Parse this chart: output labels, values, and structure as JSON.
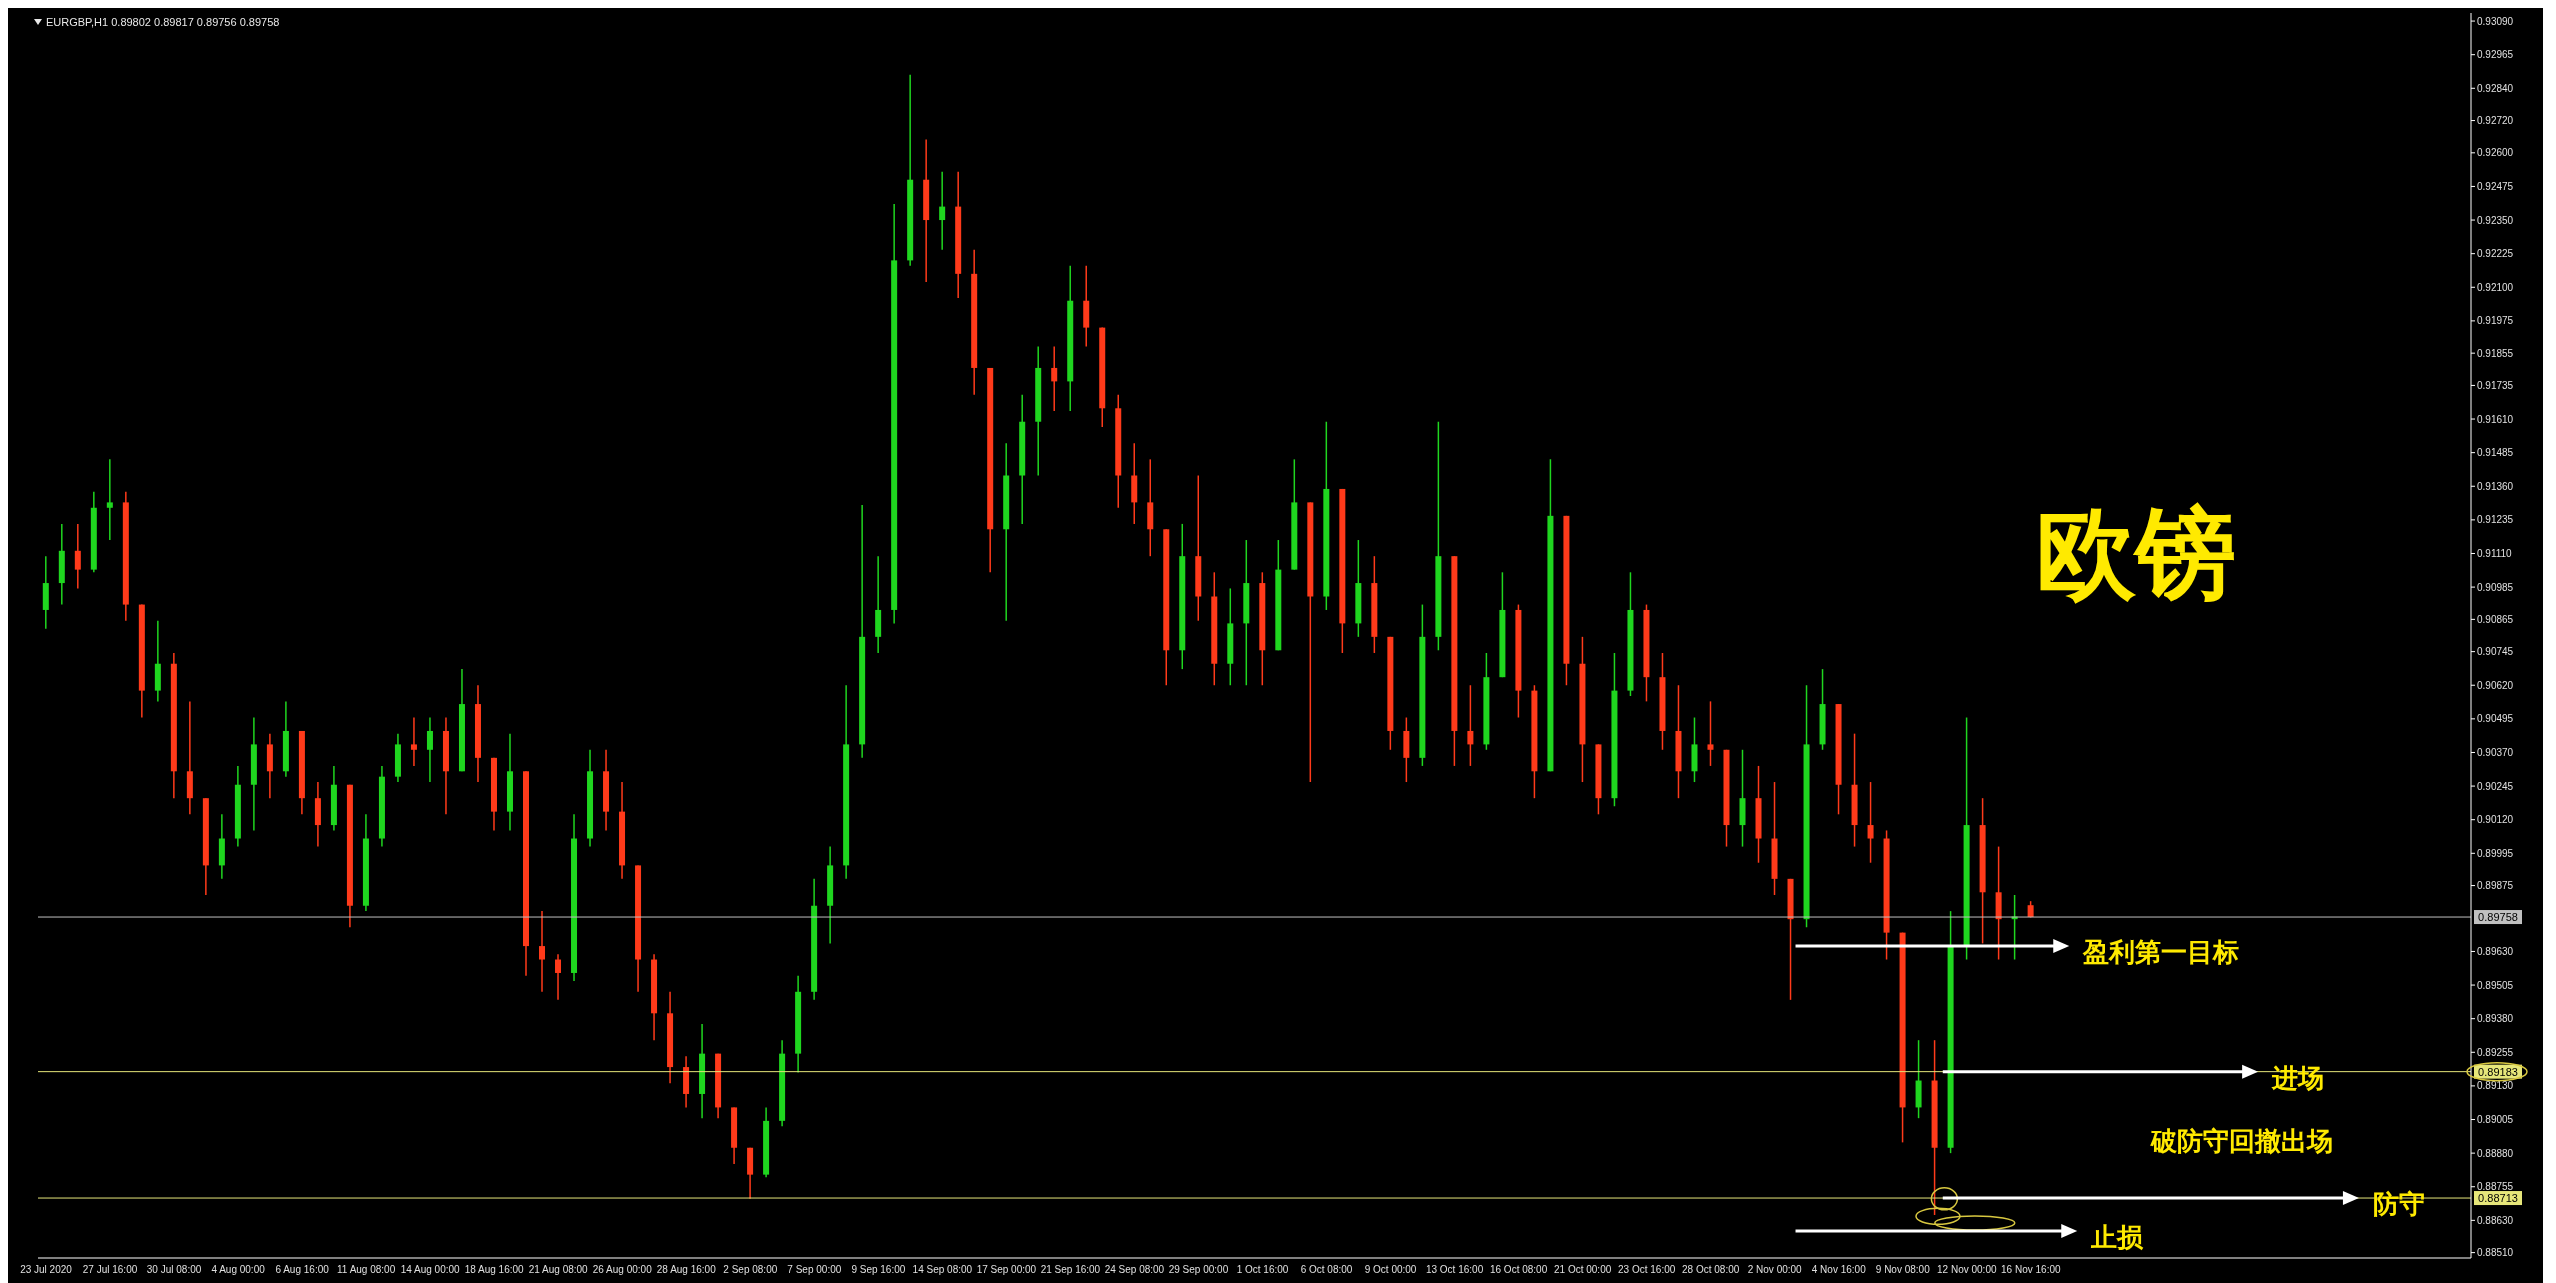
{
  "chart_data": {
    "type": "candlestick",
    "title": "EURGBP,H1  0.89802 0.89817 0.89756 0.89758",
    "categories": [
      "23 Jul 2020",
      null,
      null,
      null,
      "27 Jul 16:00",
      null,
      null,
      null,
      "30 Jul 08:00",
      null,
      null,
      null,
      "4 Aug 00:00",
      null,
      null,
      null,
      "6 Aug 16:00",
      null,
      null,
      null,
      "11 Aug 08:00",
      null,
      null,
      null,
      "14 Aug 00:00",
      null,
      null,
      null,
      "18 Aug 16:00",
      null,
      null,
      null,
      "21 Aug 08:00",
      null,
      null,
      null,
      "26 Aug 00:00",
      null,
      null,
      null,
      "28 Aug 16:00",
      null,
      null,
      null,
      "2 Sep 08:00",
      null,
      null,
      null,
      "7 Sep 00:00",
      null,
      null,
      null,
      "9 Sep 16:00",
      null,
      null,
      null,
      "14 Sep 08:00",
      null,
      null,
      null,
      "17 Sep 00:00",
      null,
      null,
      null,
      "21 Sep 16:00",
      null,
      null,
      null,
      "24 Sep 08:00",
      null,
      null,
      null,
      "29 Sep 00:00",
      null,
      null,
      null,
      "1 Oct 16:00",
      null,
      null,
      null,
      "6 Oct 08:00",
      null,
      null,
      null,
      "9 Oct 00:00",
      null,
      null,
      null,
      "13 Oct 16:00",
      null,
      null,
      null,
      "16 Oct 08:00",
      null,
      null,
      null,
      "21 Oct 00:00",
      null,
      null,
      null,
      "23 Oct 16:00",
      null,
      null,
      null,
      "28 Oct 08:00",
      null,
      null,
      null,
      "2 Nov 00:00",
      null,
      null,
      null,
      "4 Nov 16:00",
      null,
      null,
      null,
      "9 Nov 08:00",
      null,
      null,
      null,
      "12 Nov 00:00",
      null,
      null,
      null,
      "16 Nov 16:00",
      null,
      null,
      null,
      null,
      null,
      null,
      null,
      null,
      null,
      null,
      null,
      null,
      null,
      null,
      null,
      null,
      null,
      null,
      null,
      null,
      null,
      null,
      null,
      null,
      null,
      null,
      null
    ],
    "ohlc": [
      [
        0.909,
        0.911,
        0.9083,
        0.91
      ],
      [
        0.91,
        0.9122,
        0.9092,
        0.9112
      ],
      [
        0.9112,
        0.9122,
        0.9098,
        0.9105
      ],
      [
        0.9105,
        0.9134,
        0.9104,
        0.9128
      ],
      [
        0.9128,
        0.9146,
        0.9116,
        0.913
      ],
      [
        0.913,
        0.9134,
        0.9086,
        0.9092
      ],
      [
        0.9092,
        0.9092,
        0.905,
        0.906
      ],
      [
        0.906,
        0.9086,
        0.9056,
        0.907
      ],
      [
        0.907,
        0.9074,
        0.902,
        0.903
      ],
      [
        0.903,
        0.9056,
        0.9014,
        0.902
      ],
      [
        0.902,
        0.902,
        0.8984,
        0.8995
      ],
      [
        0.8995,
        0.9014,
        0.899,
        0.9005
      ],
      [
        0.9005,
        0.9032,
        0.9002,
        0.9025
      ],
      [
        0.9025,
        0.905,
        0.9008,
        0.904
      ],
      [
        0.904,
        0.9044,
        0.902,
        0.903
      ],
      [
        0.903,
        0.9056,
        0.9028,
        0.9045
      ],
      [
        0.9045,
        0.9045,
        0.9014,
        0.902
      ],
      [
        0.902,
        0.9026,
        0.9002,
        0.901
      ],
      [
        0.901,
        0.9032,
        0.9008,
        0.9025
      ],
      [
        0.9025,
        0.9025,
        0.8972,
        0.898
      ],
      [
        0.898,
        0.9014,
        0.8978,
        0.9005
      ],
      [
        0.9005,
        0.9032,
        0.9002,
        0.9028
      ],
      [
        0.9028,
        0.9044,
        0.9026,
        0.904
      ],
      [
        0.904,
        0.905,
        0.9032,
        0.9038
      ],
      [
        0.9038,
        0.905,
        0.9026,
        0.9045
      ],
      [
        0.9045,
        0.905,
        0.9014,
        0.903
      ],
      [
        0.903,
        0.9068,
        0.903,
        0.9055
      ],
      [
        0.9055,
        0.9062,
        0.9026,
        0.9035
      ],
      [
        0.9035,
        0.9035,
        0.9008,
        0.9015
      ],
      [
        0.9015,
        0.9044,
        0.9008,
        0.903
      ],
      [
        0.903,
        0.903,
        0.8954,
        0.8965
      ],
      [
        0.8965,
        0.8978,
        0.8948,
        0.896
      ],
      [
        0.896,
        0.8962,
        0.8945,
        0.8955
      ],
      [
        0.8955,
        0.9014,
        0.8952,
        0.9005
      ],
      [
        0.9005,
        0.9038,
        0.9002,
        0.903
      ],
      [
        0.903,
        0.9038,
        0.9008,
        0.9015
      ],
      [
        0.9015,
        0.9026,
        0.899,
        0.8995
      ],
      [
        0.8995,
        0.8995,
        0.8948,
        0.896
      ],
      [
        0.896,
        0.8962,
        0.893,
        0.894
      ],
      [
        0.894,
        0.8948,
        0.8914,
        0.892
      ],
      [
        0.892,
        0.8924,
        0.8905,
        0.891
      ],
      [
        0.891,
        0.8936,
        0.8901,
        0.8925
      ],
      [
        0.8925,
        0.8925,
        0.8901,
        0.8905
      ],
      [
        0.8905,
        0.8905,
        0.8884,
        0.889
      ],
      [
        0.889,
        0.889,
        0.8871,
        0.888
      ],
      [
        0.888,
        0.8905,
        0.8879,
        0.89
      ],
      [
        0.89,
        0.893,
        0.8898,
        0.8925
      ],
      [
        0.8925,
        0.8954,
        0.8918,
        0.8948
      ],
      [
        0.8948,
        0.899,
        0.8945,
        0.898
      ],
      [
        0.898,
        0.9002,
        0.8966,
        0.8995
      ],
      [
        0.8995,
        0.9062,
        0.899,
        0.904
      ],
      [
        0.904,
        0.9129,
        0.9035,
        0.908
      ],
      [
        0.908,
        0.911,
        0.9074,
        0.909
      ],
      [
        0.909,
        0.9241,
        0.9085,
        0.922
      ],
      [
        0.922,
        0.9289,
        0.9218,
        0.925
      ],
      [
        0.925,
        0.9265,
        0.9212,
        0.9235
      ],
      [
        0.9235,
        0.9253,
        0.9224,
        0.924
      ],
      [
        0.924,
        0.9253,
        0.9206,
        0.9215
      ],
      [
        0.9215,
        0.9224,
        0.917,
        0.918
      ],
      [
        0.918,
        0.918,
        0.9104,
        0.912
      ],
      [
        0.912,
        0.9152,
        0.9086,
        0.914
      ],
      [
        0.914,
        0.917,
        0.9122,
        0.916
      ],
      [
        0.916,
        0.9188,
        0.914,
        0.918
      ],
      [
        0.918,
        0.9188,
        0.9164,
        0.9175
      ],
      [
        0.9175,
        0.9218,
        0.9164,
        0.9205
      ],
      [
        0.9205,
        0.9218,
        0.9188,
        0.9195
      ],
      [
        0.9195,
        0.9195,
        0.9158,
        0.9165
      ],
      [
        0.9165,
        0.917,
        0.9128,
        0.914
      ],
      [
        0.914,
        0.9152,
        0.9122,
        0.913
      ],
      [
        0.913,
        0.9146,
        0.911,
        0.912
      ],
      [
        0.912,
        0.912,
        0.9062,
        0.9075
      ],
      [
        0.9075,
        0.9122,
        0.9068,
        0.911
      ],
      [
        0.911,
        0.914,
        0.9086,
        0.9095
      ],
      [
        0.9095,
        0.9104,
        0.9062,
        0.907
      ],
      [
        0.907,
        0.9098,
        0.9062,
        0.9085
      ],
      [
        0.9085,
        0.9116,
        0.9062,
        0.91
      ],
      [
        0.91,
        0.9104,
        0.9062,
        0.9075
      ],
      [
        0.9075,
        0.9116,
        0.9075,
        0.9105
      ],
      [
        0.9105,
        0.9146,
        0.9105,
        0.913
      ],
      [
        0.913,
        0.913,
        0.9026,
        0.9095
      ],
      [
        0.9095,
        0.916,
        0.909,
        0.9135
      ],
      [
        0.9135,
        0.9135,
        0.9074,
        0.9085
      ],
      [
        0.9085,
        0.9116,
        0.908,
        0.91
      ],
      [
        0.91,
        0.911,
        0.9074,
        0.908
      ],
      [
        0.908,
        0.908,
        0.9038,
        0.9045
      ],
      [
        0.9045,
        0.905,
        0.9026,
        0.9035
      ],
      [
        0.9035,
        0.9092,
        0.9032,
        0.908
      ],
      [
        0.908,
        0.916,
        0.9075,
        0.911
      ],
      [
        0.911,
        0.911,
        0.9032,
        0.9045
      ],
      [
        0.9045,
        0.9062,
        0.9032,
        0.904
      ],
      [
        0.904,
        0.9074,
        0.9038,
        0.9065
      ],
      [
        0.9065,
        0.9104,
        0.9065,
        0.909
      ],
      [
        0.909,
        0.9092,
        0.905,
        0.906
      ],
      [
        0.906,
        0.9062,
        0.902,
        0.903
      ],
      [
        0.903,
        0.9146,
        0.903,
        0.9125
      ],
      [
        0.9125,
        0.9125,
        0.9062,
        0.907
      ],
      [
        0.907,
        0.908,
        0.9026,
        0.904
      ],
      [
        0.904,
        0.904,
        0.9014,
        0.902
      ],
      [
        0.902,
        0.9074,
        0.9017,
        0.906
      ],
      [
        0.906,
        0.9104,
        0.9058,
        0.909
      ],
      [
        0.909,
        0.9092,
        0.9056,
        0.9065
      ],
      [
        0.9065,
        0.9074,
        0.9038,
        0.9045
      ],
      [
        0.9045,
        0.9062,
        0.902,
        0.903
      ],
      [
        0.903,
        0.905,
        0.9026,
        0.904
      ],
      [
        0.904,
        0.9056,
        0.9032,
        0.9038
      ],
      [
        0.9038,
        0.9038,
        0.9002,
        0.901
      ],
      [
        0.901,
        0.9038,
        0.9002,
        0.902
      ],
      [
        0.902,
        0.9032,
        0.8996,
        0.9005
      ],
      [
        0.9005,
        0.9026,
        0.8984,
        0.899
      ],
      [
        0.899,
        0.899,
        0.8945,
        0.8975
      ],
      [
        0.8975,
        0.9062,
        0.8972,
        0.904
      ],
      [
        0.904,
        0.9068,
        0.9038,
        0.9055
      ],
      [
        0.9055,
        0.9055,
        0.9014,
        0.9025
      ],
      [
        0.9025,
        0.9044,
        0.9002,
        0.901
      ],
      [
        0.901,
        0.9026,
        0.8996,
        0.9005
      ],
      [
        0.9005,
        0.9008,
        0.896,
        0.897
      ],
      [
        0.897,
        0.897,
        0.8892,
        0.8905
      ],
      [
        0.8905,
        0.893,
        0.8901,
        0.8915
      ],
      [
        0.8915,
        0.893,
        0.8865,
        0.889
      ],
      [
        0.889,
        0.8978,
        0.8888,
        0.8965
      ],
      [
        0.8965,
        0.905,
        0.896,
        0.901
      ],
      [
        0.901,
        0.902,
        0.8966,
        0.8985
      ],
      [
        0.8985,
        0.9002,
        0.896,
        0.8975
      ],
      [
        0.8975,
        0.8984,
        0.896,
        0.8976
      ],
      [
        0.89802,
        0.89817,
        0.89756,
        0.89758
      ],
      null,
      null,
      null,
      null,
      null,
      null,
      null,
      null,
      null,
      null,
      null,
      null,
      null,
      null,
      null,
      null,
      null,
      null,
      null,
      null,
      null,
      null,
      null,
      null,
      null,
      null,
      null
    ],
    "ylim": [
      0.8849,
      0.9312
    ],
    "yticks": [
      {
        "value": 0.9309,
        "label": "0.93090"
      },
      {
        "value": 0.92965,
        "label": "0.92965"
      },
      {
        "value": 0.9284,
        "label": "0.92840"
      },
      {
        "value": 0.9272,
        "label": "0.92720"
      },
      {
        "value": 0.926,
        "label": "0.92600"
      },
      {
        "value": 0.92475,
        "label": "0.92475"
      },
      {
        "value": 0.9235,
        "label": "0.92350"
      },
      {
        "value": 0.92225,
        "label": "0.92225"
      },
      {
        "value": 0.921,
        "label": "0.92100"
      },
      {
        "value": 0.91975,
        "label": "0.91975"
      },
      {
        "value": 0.91855,
        "label": "0.91855"
      },
      {
        "value": 0.91735,
        "label": "0.91735"
      },
      {
        "value": 0.9161,
        "label": "0.91610"
      },
      {
        "value": 0.91485,
        "label": "0.91485"
      },
      {
        "value": 0.9136,
        "label": "0.91360"
      },
      {
        "value": 0.91235,
        "label": "0.91235"
      },
      {
        "value": 0.9111,
        "label": "0.91110"
      },
      {
        "value": 0.90985,
        "label": "0.90985"
      },
      {
        "value": 0.90865,
        "label": "0.90865"
      },
      {
        "value": 0.90745,
        "label": "0.90745"
      },
      {
        "value": 0.9062,
        "label": "0.90620"
      },
      {
        "value": 0.90495,
        "label": "0.90495"
      },
      {
        "value": 0.9037,
        "label": "0.90370"
      },
      {
        "value": 0.90245,
        "label": "0.90245"
      },
      {
        "value": 0.9012,
        "label": "0.90120"
      },
      {
        "value": 0.89995,
        "label": "0.89995"
      },
      {
        "value": 0.89875,
        "label": "0.89875"
      },
      {
        "value": 0.8963,
        "label": "0.89630"
      },
      {
        "value": 0.89505,
        "label": "0.89505"
      },
      {
        "value": 0.8938,
        "label": "0.89380"
      },
      {
        "value": 0.89255,
        "label": "0.89255"
      },
      {
        "value": 0.8913,
        "label": "0.89130"
      },
      {
        "value": 0.89005,
        "label": "0.89005"
      },
      {
        "value": 0.8888,
        "label": "0.88880"
      },
      {
        "value": 0.88755,
        "label": "0.88755"
      },
      {
        "value": 0.8863,
        "label": "0.88630"
      },
      {
        "value": 0.8851,
        "label": "0.88510"
      }
    ],
    "ref_lines": [
      {
        "axis": "y",
        "value": 0.89758,
        "label": "0.89758",
        "color": "#c0c0c0"
      },
      {
        "axis": "y",
        "value": 0.89183,
        "label": "0.89183",
        "color": "#e6e67a"
      },
      {
        "axis": "y",
        "value": 0.88713,
        "label": "0.88713",
        "color": "#e6e67a"
      }
    ],
    "annotations": [
      "欧镑",
      "盈利第一目标",
      {
        "text": "进场",
        "y": 0.89183
      },
      "破防守回撤出场",
      {
        "text": "防守",
        "y": 0.88713
      },
      "止损"
    ]
  }
}
